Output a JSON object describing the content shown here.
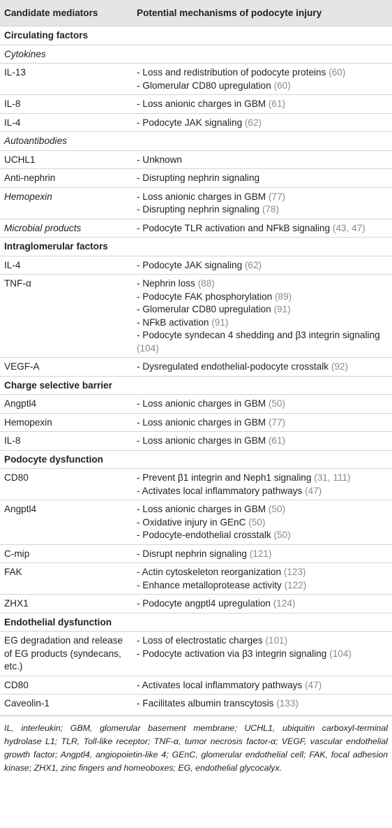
{
  "table": {
    "header": [
      "Candidate mediators",
      "Potential mechanisms of podocyte injury"
    ],
    "rows": [
      {
        "section": "Circulating factors"
      },
      {
        "subsection": "Cytokines"
      },
      {
        "mediator": "IL-13",
        "mechanisms": [
          {
            "text": "- Loss and redistribution of podocyte proteins",
            "ref": "(60)"
          },
          {
            "text": "- Glomerular CD80 upregulation",
            "ref": "(60)"
          }
        ]
      },
      {
        "mediator": "IL-8",
        "mechanisms": [
          {
            "text": "- Loss anionic charges in GBM",
            "ref": "(61)"
          }
        ]
      },
      {
        "mediator": "IL-4",
        "mechanisms": [
          {
            "text": "- Podocyte JAK signaling",
            "ref": "(62)"
          }
        ]
      },
      {
        "subsection": "Autoantibodies"
      },
      {
        "mediator": "UCHL1",
        "mechanisms": [
          {
            "text": "- Unknown"
          }
        ]
      },
      {
        "mediator": "Anti-nephrin",
        "mechanisms": [
          {
            "text": "- Disrupting nephrin signaling"
          }
        ]
      },
      {
        "mediator": "Hemopexin",
        "italic": true,
        "mechanisms": [
          {
            "text": "- Loss anionic charges in GBM",
            "ref": "(77)"
          },
          {
            "text": "- Disrupting nephrin signaling",
            "ref": "(78)"
          }
        ]
      },
      {
        "mediator": "Microbial products",
        "italic": true,
        "mechanisms": [
          {
            "text": "- Podocyte TLR activation and NFkB signaling",
            "ref": "(43, 47)"
          }
        ]
      },
      {
        "section": "Intraglomerular factors"
      },
      {
        "mediator": "IL-4",
        "mechanisms": [
          {
            "text": "- Podocyte JAK signaling",
            "ref": "(62)"
          }
        ]
      },
      {
        "mediator": "TNF-α",
        "mechanisms": [
          {
            "text": "- Nephrin loss",
            "ref": "(88)"
          },
          {
            "text": "- Podocyte FAK phosphorylation",
            "ref": "(89)"
          },
          {
            "text": "- Glomerular CD80 upregulation",
            "ref": "(91)"
          },
          {
            "text": "- NFkB activation",
            "ref": "(91)"
          },
          {
            "text": "- Podocyte syndecan 4 shedding and β3 integrin signaling",
            "ref": "(104)"
          }
        ]
      },
      {
        "mediator": "VEGF-A",
        "mechanisms": [
          {
            "text": "- Dysregulated endothelial-podocyte crosstalk",
            "ref": "(92)"
          }
        ]
      },
      {
        "section": "Charge selective barrier"
      },
      {
        "mediator": "Angptl4",
        "mechanisms": [
          {
            "text": "- Loss anionic charges in GBM",
            "ref": "(50)"
          }
        ]
      },
      {
        "mediator": "Hemopexin",
        "mechanisms": [
          {
            "text": "- Loss anionic charges in GBM",
            "ref": "(77)"
          }
        ]
      },
      {
        "mediator": "IL-8",
        "mechanisms": [
          {
            "text": "- Loss anionic charges in GBM",
            "ref": "(61)"
          }
        ]
      },
      {
        "section": "Podocyte dysfunction"
      },
      {
        "mediator": "CD80",
        "mechanisms": [
          {
            "text": "- Prevent β1 integrin and Neph1 signaling",
            "ref": "(31, 111)"
          },
          {
            "text": "- Activates local inflammatory pathways",
            "ref": "(47)"
          }
        ]
      },
      {
        "mediator": "Angptl4",
        "mechanisms": [
          {
            "text": "- Loss anionic charges in GBM",
            "ref": "(50)"
          },
          {
            "text": "- Oxidative injury in GEnC",
            "ref": "(50)"
          },
          {
            "text": "- Podocyte-endothelial crosstalk",
            "ref": "(50)"
          }
        ]
      },
      {
        "mediator": "C-mip",
        "mechanisms": [
          {
            "text": "- Disrupt nephrin signaling",
            "ref": "(121)"
          }
        ]
      },
      {
        "mediator": "FAK",
        "mechanisms": [
          {
            "text": "- Actin cytoskeleton reorganization",
            "ref": "(123)"
          },
          {
            "text": "- Enhance metalloprotease activity",
            "ref": "(122)"
          }
        ]
      },
      {
        "mediator": "ZHX1",
        "mechanisms": [
          {
            "text": "- Podocyte angptl4 upregulation",
            "ref": "(124)"
          }
        ]
      },
      {
        "section": "Endothelial dysfunction"
      },
      {
        "mediator": "EG degradation and release of EG products (syndecans, etc.)",
        "mechanisms": [
          {
            "text": "- Loss of electrostatic charges",
            "ref": "(101)"
          },
          {
            "text": "- Podocyte activation via β3 integrin signaling",
            "ref": "(104)"
          }
        ]
      },
      {
        "mediator": "CD80",
        "mechanisms": [
          {
            "text": "- Activates local inflammatory pathways",
            "ref": "(47)"
          }
        ]
      },
      {
        "mediator": "Caveolin-1",
        "mechanisms": [
          {
            "text": "- Facilitates albumin transcytosis",
            "ref": "(133)"
          }
        ]
      }
    ],
    "footnote": "IL, interleukin; GBM, glomerular basement membrane; UCHL1, ubiquitin carboxyl-terminal hydrolase L1; TLR, Toll-like receptor; TNF-α, tumor necrosis factor-α; VEGF, vascular endothelial growth factor; Angptl4, angiopoietin-like 4; GEnC, glomerular endothelial cell; FAK, focal adhesion kinase; ZHX1, zinc fingers and homeoboxes; EG, endothelial glycocalyx."
  }
}
